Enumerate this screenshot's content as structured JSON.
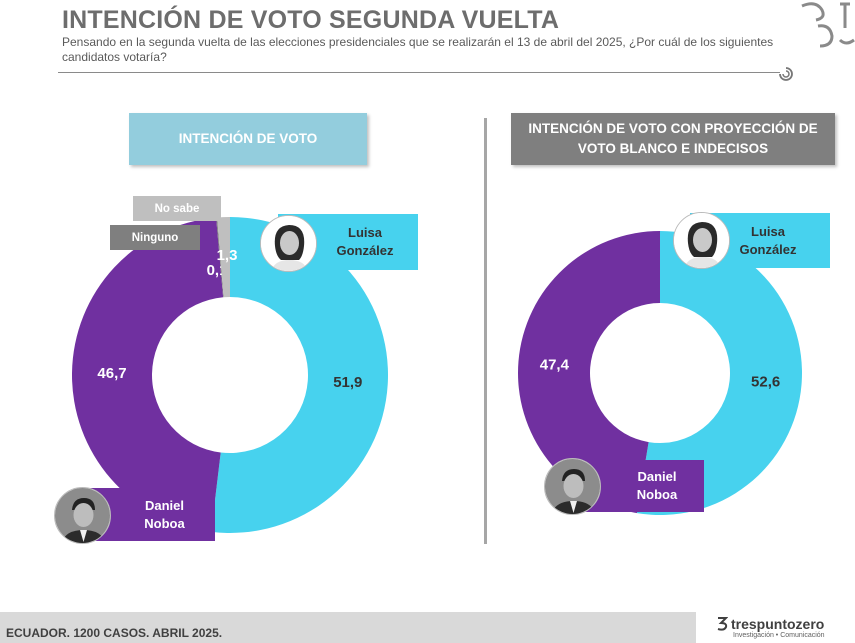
{
  "header": {
    "title": "INTENCIÓN DE VOTO SEGUNDA VUELTA",
    "subtitle": "Pensando en la segunda vuelta de las elecciones presidenciales que se realizarán el 13 de abril del 2025, ¿Por cuál de los siguientes candidatos votaría?"
  },
  "chart_data": [
    {
      "type": "pie",
      "title": "INTENCIÓN DE VOTO",
      "categories": [
        "Luisa González",
        "Daniel Noboa",
        "Ninguno",
        "No sabe"
      ],
      "values": [
        51.9,
        46.7,
        0.1,
        1.3
      ],
      "value_labels": [
        "51,9",
        "46,7",
        "0,1",
        "1,3"
      ],
      "colors": [
        "#47d2ee",
        "#7030a0",
        "#7f7f7f",
        "#bfbfbf"
      ],
      "donut": true
    },
    {
      "type": "pie",
      "title": "INTENCIÓN DE VOTO CON PROYECCIÓN DE VOTO BLANCO E INDECISOS",
      "categories": [
        "Luisa González",
        "Daniel Noboa"
      ],
      "values": [
        52.6,
        47.4
      ],
      "value_labels": [
        "52,6",
        "47,4"
      ],
      "colors": [
        "#47d2ee",
        "#7030a0"
      ],
      "donut": true
    }
  ],
  "candidates": {
    "gonzalez_line1": "Luisa",
    "gonzalez_line2": "González",
    "noboa_line1": "Daniel",
    "noboa_line2": "Noboa"
  },
  "tags": {
    "no_sabe": "No sabe",
    "ninguno": "Ninguno"
  },
  "footer": {
    "text": "ECUADOR. 1200 CASOS. ABRIL 2025.",
    "brand": "trespuntozero",
    "brand_sub": "Investigación • Comunicación"
  }
}
